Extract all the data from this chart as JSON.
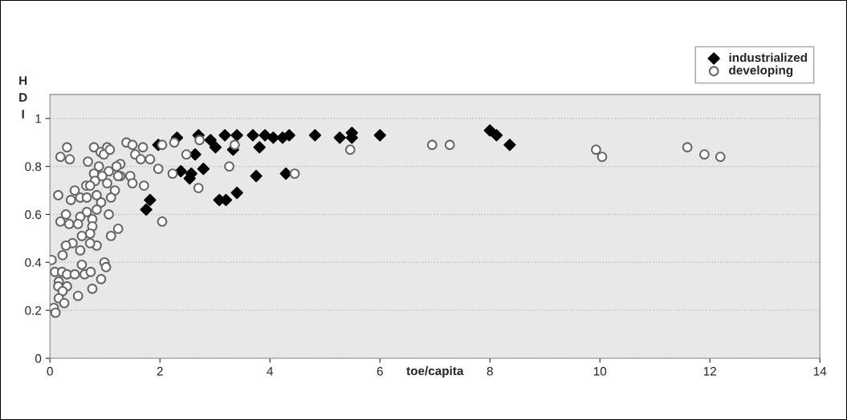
{
  "chart_data": {
    "type": "scatter",
    "xlabel": "toe/capita",
    "ylabel": "HDI",
    "xlim": [
      0,
      14
    ],
    "ylim": [
      0,
      1.1
    ],
    "xticks": [
      0,
      2,
      4,
      6,
      8,
      10,
      12,
      14
    ],
    "yticks": [
      0,
      0.2,
      0.4,
      0.6,
      0.8,
      1
    ],
    "grid": "y",
    "legend": "top right",
    "series": [
      {
        "name": "industrialized",
        "color": "#000000",
        "marker": "diamond",
        "x": [
          2.31,
          2.7,
          2.92,
          3.18,
          3.01,
          3.4,
          3.33,
          3.69,
          3.91,
          4.06,
          4.23,
          4.35,
          4.82,
          5.27,
          5.49,
          5.49,
          3.81,
          1.97,
          2.64,
          2.38,
          2.57,
          2.54,
          2.79,
          3.75,
          4.29,
          3.4,
          3.08,
          3.2,
          1.82,
          1.75,
          6.0,
          8.0,
          8.12,
          8.36
        ],
        "values": [
          0.92,
          0.93,
          0.91,
          0.93,
          0.88,
          0.93,
          0.87,
          0.93,
          0.93,
          0.92,
          0.92,
          0.93,
          0.93,
          0.92,
          0.94,
          0.92,
          0.88,
          0.89,
          0.85,
          0.78,
          0.77,
          0.75,
          0.79,
          0.76,
          0.77,
          0.69,
          0.66,
          0.66,
          0.66,
          0.62,
          0.93,
          0.95,
          0.93,
          0.89
        ]
      },
      {
        "name": "developing",
        "color": "#ffffff",
        "marker": "circle",
        "x": [
          5.46,
          6.95,
          7.27,
          9.93,
          10.04,
          11.59,
          11.9,
          12.19,
          1.39,
          1.5,
          1.69,
          1.55,
          1.65,
          1.82,
          1.97,
          2.23,
          2.04,
          2.26,
          2.48,
          2.72,
          2.7,
          3.26,
          3.36,
          4.45,
          2.04,
          1.46,
          1.5,
          1.71,
          1.28,
          1.28,
          0.31,
          0.19,
          0.36,
          0.15,
          0.8,
          0.92,
          1.04,
          0.98,
          1.09,
          0.69,
          0.89,
          1.07,
          1.21,
          1.24,
          0.8,
          0.95,
          0.82,
          1.04,
          1.18,
          0.66,
          0.73,
          0.45,
          0.38,
          0.55,
          0.67,
          0.85,
          0.93,
          1.11,
          0.85,
          1.07,
          0.67,
          0.55,
          0.29,
          0.19,
          0.35,
          0.51,
          0.77,
          0.77,
          1.24,
          1.11,
          0.73,
          0.58,
          0.41,
          0.55,
          0.29,
          0.85,
          0.73,
          0.23,
          0.03,
          0.09,
          0.22,
          0.31,
          0.45,
          0.58,
          0.63,
          0.74,
          0.99,
          1.02,
          0.93,
          0.16,
          0.15,
          0.31,
          0.23,
          0.77,
          0.51,
          0.16,
          0.26,
          0.07,
          0.1
        ],
        "values": [
          0.87,
          0.89,
          0.89,
          0.87,
          0.84,
          0.88,
          0.85,
          0.84,
          0.9,
          0.89,
          0.88,
          0.85,
          0.83,
          0.83,
          0.79,
          0.77,
          0.89,
          0.9,
          0.85,
          0.91,
          0.71,
          0.8,
          0.89,
          0.77,
          0.57,
          0.76,
          0.73,
          0.72,
          0.81,
          0.76,
          0.88,
          0.84,
          0.83,
          0.68,
          0.88,
          0.86,
          0.88,
          0.85,
          0.87,
          0.82,
          0.8,
          0.78,
          0.8,
          0.76,
          0.77,
          0.76,
          0.74,
          0.73,
          0.7,
          0.72,
          0.72,
          0.7,
          0.66,
          0.67,
          0.67,
          0.68,
          0.65,
          0.67,
          0.62,
          0.6,
          0.61,
          0.59,
          0.6,
          0.57,
          0.56,
          0.56,
          0.58,
          0.55,
          0.54,
          0.51,
          0.52,
          0.51,
          0.48,
          0.45,
          0.47,
          0.47,
          0.48,
          0.43,
          0.41,
          0.36,
          0.36,
          0.35,
          0.35,
          0.39,
          0.35,
          0.36,
          0.4,
          0.38,
          0.33,
          0.32,
          0.3,
          0.3,
          0.28,
          0.29,
          0.26,
          0.25,
          0.23,
          0.21,
          0.19
        ]
      }
    ]
  }
}
